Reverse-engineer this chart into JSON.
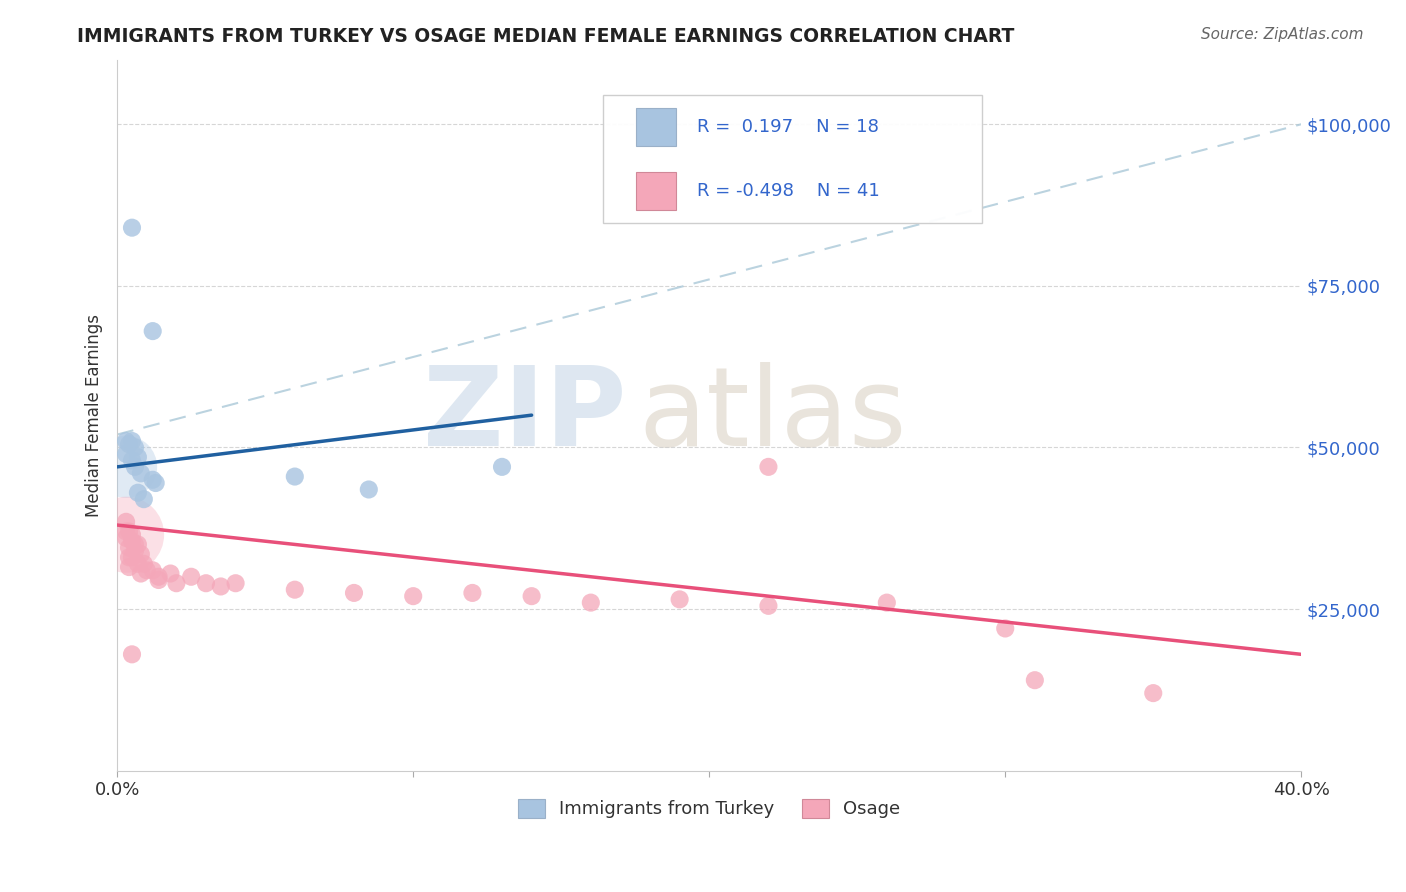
{
  "title": "IMMIGRANTS FROM TURKEY VS OSAGE MEDIAN FEMALE EARNINGS CORRELATION CHART",
  "source": "Source: ZipAtlas.com",
  "ylabel": "Median Female Earnings",
  "legend_label1": "Immigrants from Turkey",
  "legend_label2": "Osage",
  "r1": "0.197",
  "n1": "18",
  "r2": "-0.498",
  "n2": "41",
  "blue_color": "#a8c4e0",
  "pink_color": "#f4a7b9",
  "blue_line_color": "#2060a0",
  "pink_line_color": "#e8507a",
  "dash_line_color": "#aac8d8",
  "xlim": [
    0.0,
    0.4
  ],
  "ylim": [
    0,
    110000
  ],
  "turkey_points": [
    [
      0.005,
      84000
    ],
    [
      0.012,
      68000
    ],
    [
      0.003,
      51000
    ],
    [
      0.005,
      51000
    ],
    [
      0.004,
      50500
    ],
    [
      0.006,
      50000
    ],
    [
      0.003,
      49000
    ],
    [
      0.007,
      48500
    ],
    [
      0.005,
      48000
    ],
    [
      0.006,
      47000
    ],
    [
      0.008,
      46000
    ],
    [
      0.012,
      45000
    ],
    [
      0.013,
      44500
    ],
    [
      0.007,
      43000
    ],
    [
      0.009,
      42000
    ],
    [
      0.06,
      45500
    ],
    [
      0.085,
      43500
    ],
    [
      0.13,
      47000
    ]
  ],
  "osage_points": [
    [
      0.003,
      38500
    ],
    [
      0.003,
      37000
    ],
    [
      0.004,
      37000
    ],
    [
      0.005,
      36500
    ],
    [
      0.003,
      36000
    ],
    [
      0.005,
      35500
    ],
    [
      0.006,
      35000
    ],
    [
      0.007,
      35000
    ],
    [
      0.004,
      34500
    ],
    [
      0.006,
      34000
    ],
    [
      0.008,
      33500
    ],
    [
      0.004,
      33000
    ],
    [
      0.005,
      33000
    ],
    [
      0.007,
      32000
    ],
    [
      0.009,
      32000
    ],
    [
      0.004,
      31500
    ],
    [
      0.01,
      31000
    ],
    [
      0.012,
      31000
    ],
    [
      0.008,
      30500
    ],
    [
      0.014,
      30000
    ],
    [
      0.014,
      29500
    ],
    [
      0.018,
      30500
    ],
    [
      0.02,
      29000
    ],
    [
      0.025,
      30000
    ],
    [
      0.03,
      29000
    ],
    [
      0.035,
      28500
    ],
    [
      0.04,
      29000
    ],
    [
      0.06,
      28000
    ],
    [
      0.08,
      27500
    ],
    [
      0.1,
      27000
    ],
    [
      0.12,
      27500
    ],
    [
      0.14,
      27000
    ],
    [
      0.16,
      26000
    ],
    [
      0.19,
      26500
    ],
    [
      0.22,
      25500
    ],
    [
      0.26,
      26000
    ],
    [
      0.005,
      18000
    ],
    [
      0.22,
      47000
    ],
    [
      0.3,
      22000
    ],
    [
      0.31,
      14000
    ],
    [
      0.35,
      12000
    ]
  ],
  "large_blue_bubble": [
    0.003,
    47000,
    2000
  ],
  "large_pink_bubble": [
    0.003,
    36500,
    3000
  ]
}
